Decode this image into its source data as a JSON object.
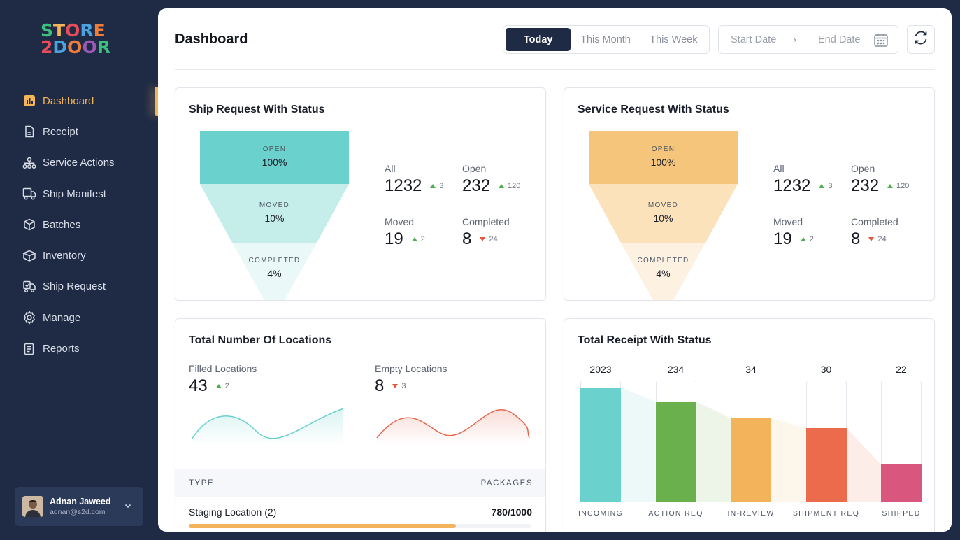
{
  "brand": {
    "logo_line1": "STORE",
    "logo_line2": "2DOOR"
  },
  "sidebar": {
    "items": [
      {
        "label": "Dashboard",
        "icon": "chart-icon",
        "active": true
      },
      {
        "label": "Receipt",
        "icon": "receipt-icon"
      },
      {
        "label": "Service Actions",
        "icon": "hierarchy-icon"
      },
      {
        "label": "Ship Manifest",
        "icon": "truck-doc-icon"
      },
      {
        "label": "Batches",
        "icon": "box-icon"
      },
      {
        "label": "Inventory",
        "icon": "inventory-icon"
      },
      {
        "label": "Ship Request",
        "icon": "ship-request-icon"
      },
      {
        "label": "Manage",
        "icon": "gear-icon"
      },
      {
        "label": "Reports",
        "icon": "report-icon"
      }
    ],
    "user": {
      "name": "Adnan Jaweed",
      "email": "adnan@s2d.com"
    }
  },
  "header": {
    "title": "Dashboard",
    "range_tabs": [
      "Today",
      "This Month",
      "This Week"
    ],
    "active_tab": "Today",
    "start_date_placeholder": "Start Date",
    "end_date_placeholder": "End Date",
    "arrow": "›"
  },
  "ship_request": {
    "title": "Ship Request With Status",
    "funnel": [
      {
        "caption": "OPEN",
        "value": "100%"
      },
      {
        "caption": "MOVED",
        "value": "10%"
      },
      {
        "caption": "COMPLETED",
        "value": "4%"
      }
    ],
    "colors": [
      "#6bd1cc",
      "#c5eeeb",
      "#eaf8f7"
    ],
    "stats": [
      {
        "label": "All",
        "value": "1232",
        "delta": "3",
        "dir": "up"
      },
      {
        "label": "Open",
        "value": "232",
        "delta": "120",
        "dir": "up"
      },
      {
        "label": "Moved",
        "value": "19",
        "delta": "2",
        "dir": "up"
      },
      {
        "label": "Completed",
        "value": "8",
        "delta": "24",
        "dir": "down"
      }
    ]
  },
  "service_request": {
    "title": "Service Request With Status",
    "funnel": [
      {
        "caption": "OPEN",
        "value": "100%"
      },
      {
        "caption": "MOVED",
        "value": "10%"
      },
      {
        "caption": "COMPLETED",
        "value": "4%"
      }
    ],
    "colors": [
      "#f4c57a",
      "#fbe2bb",
      "#fdf2e2"
    ],
    "stats": [
      {
        "label": "All",
        "value": "1232",
        "delta": "3",
        "dir": "up"
      },
      {
        "label": "Open",
        "value": "232",
        "delta": "120",
        "dir": "up"
      },
      {
        "label": "Moved",
        "value": "19",
        "delta": "2",
        "dir": "up"
      },
      {
        "label": "Completed",
        "value": "8",
        "delta": "24",
        "dir": "down"
      }
    ]
  },
  "locations": {
    "title": "Total Number Of Locations",
    "filled": {
      "label": "Filled Locations",
      "value": "43",
      "delta": "2",
      "dir": "up",
      "color": "#6bd1cc"
    },
    "empty": {
      "label": "Empty Locations",
      "value": "8",
      "delta": "3",
      "dir": "down",
      "color": "#e8654c"
    },
    "table": {
      "col_type": "TYPE",
      "col_packages": "PACKAGES",
      "rows": [
        {
          "name": "Staging Location (2)",
          "packages": "780/1000",
          "fraction": 0.78
        }
      ]
    }
  },
  "receipt": {
    "title": "Total Receipt With Status"
  },
  "chart_data": {
    "type": "bar",
    "title": "Total Receipt With Status",
    "categories": [
      "INCOMING",
      "ACTION REQ",
      "IN-REVIEW",
      "SHIPMENT REQ",
      "SHIPPED"
    ],
    "values": [
      2023,
      234,
      34,
      30,
      22
    ],
    "value_labels": [
      "2023",
      "234",
      "34",
      "30",
      "22"
    ],
    "fill_fractions": [
      0.94,
      0.83,
      0.69,
      0.61,
      0.31
    ],
    "colors": [
      "#6bd1cc",
      "#6ab04c",
      "#f2b35a",
      "#ec6b4d",
      "#d9577e"
    ],
    "grid": false
  }
}
